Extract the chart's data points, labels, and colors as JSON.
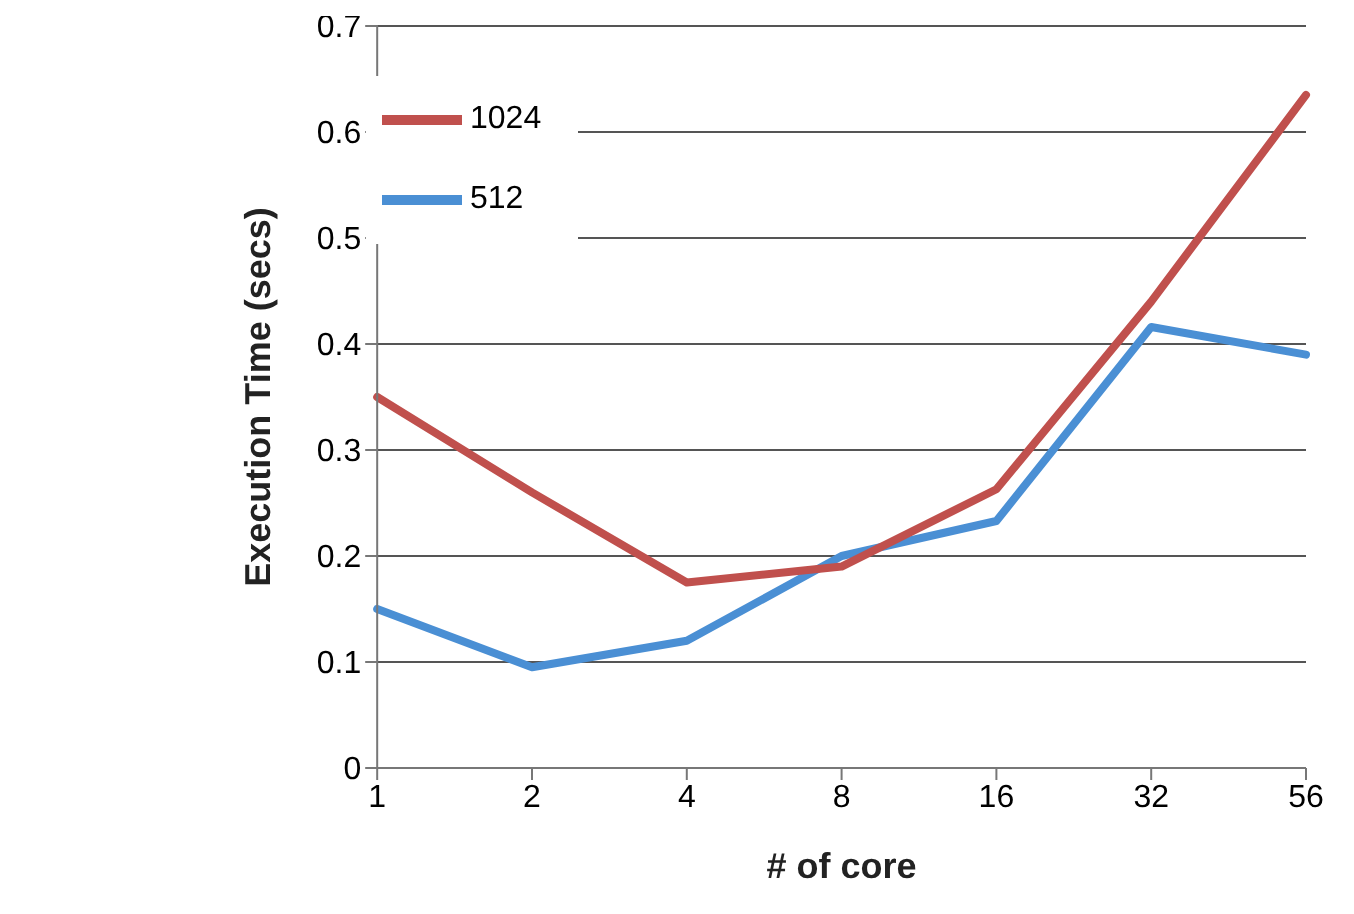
{
  "chart_data": {
    "type": "line",
    "xlabel": "# of core",
    "ylabel": "Execution Time (secs)",
    "categories": [
      "1",
      "2",
      "4",
      "8",
      "16",
      "32",
      "56"
    ],
    "series": [
      {
        "name": "512",
        "color": "#4a8fd4",
        "values": [
          0.15,
          0.095,
          0.12,
          0.2,
          0.233,
          0.416,
          0.39
        ]
      },
      {
        "name": "1024",
        "color": "#c0504d",
        "values": [
          0.35,
          0.26,
          0.175,
          0.19,
          0.263,
          0.44,
          0.635
        ]
      }
    ],
    "ylim": [
      0,
      0.7
    ],
    "yticks": [
      0,
      0.1,
      0.2,
      0.3,
      0.4,
      0.5,
      0.6,
      0.7
    ],
    "grid": "y",
    "legend": "top left",
    "marker": "none",
    "line_style": "solid"
  }
}
